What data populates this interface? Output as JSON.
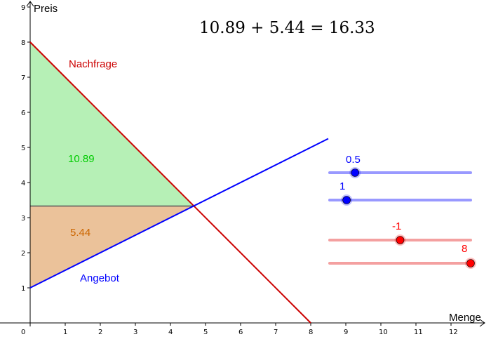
{
  "formula": "10.89 + 5.44 = 16.33",
  "chart_data": {
    "type": "line",
    "xlabel": "Menge",
    "ylabel": "Preis",
    "xlim": [
      0,
      13
    ],
    "ylim": [
      0,
      9
    ],
    "x_ticks": [
      "0",
      "1",
      "2",
      "3",
      "4",
      "5",
      "6",
      "7",
      "8",
      "9",
      "10",
      "11",
      "12"
    ],
    "y_ticks": [
      "1",
      "2",
      "3",
      "4",
      "5",
      "6",
      "7",
      "8",
      "9"
    ],
    "series": [
      {
        "name": "Nachfrage",
        "color": "#cc0000",
        "slope": -1,
        "intercept": 8,
        "x": [
          0,
          8
        ]
      },
      {
        "name": "Angebot",
        "color": "#0000ff",
        "slope": 0.5,
        "intercept": 1,
        "x": [
          0,
          8.5
        ]
      }
    ],
    "equilibrium": {
      "x": 4.67,
      "y": 3.33
    },
    "areas": [
      {
        "value": "10.89",
        "color": "#00cc00",
        "fill": "#b6f0b6"
      },
      {
        "value": "5.44",
        "color": "#cc6600",
        "fill": "#ebc29a"
      }
    ]
  },
  "sliders": [
    {
      "label": "0.5",
      "value": 0.5,
      "fraction": 0.18,
      "color": "#0000ff",
      "track": "#9999ff"
    },
    {
      "label": "1",
      "value": 1,
      "fraction": 0.12,
      "color": "#0000ff",
      "track": "#9999ff"
    },
    {
      "label": "-1",
      "value": -1,
      "fraction": 0.5,
      "color": "#ff0000",
      "track": "#f4a0a0"
    },
    {
      "label": "8",
      "value": 8,
      "fraction": 1.0,
      "color": "#ff0000",
      "track": "#f4a0a0"
    }
  ]
}
